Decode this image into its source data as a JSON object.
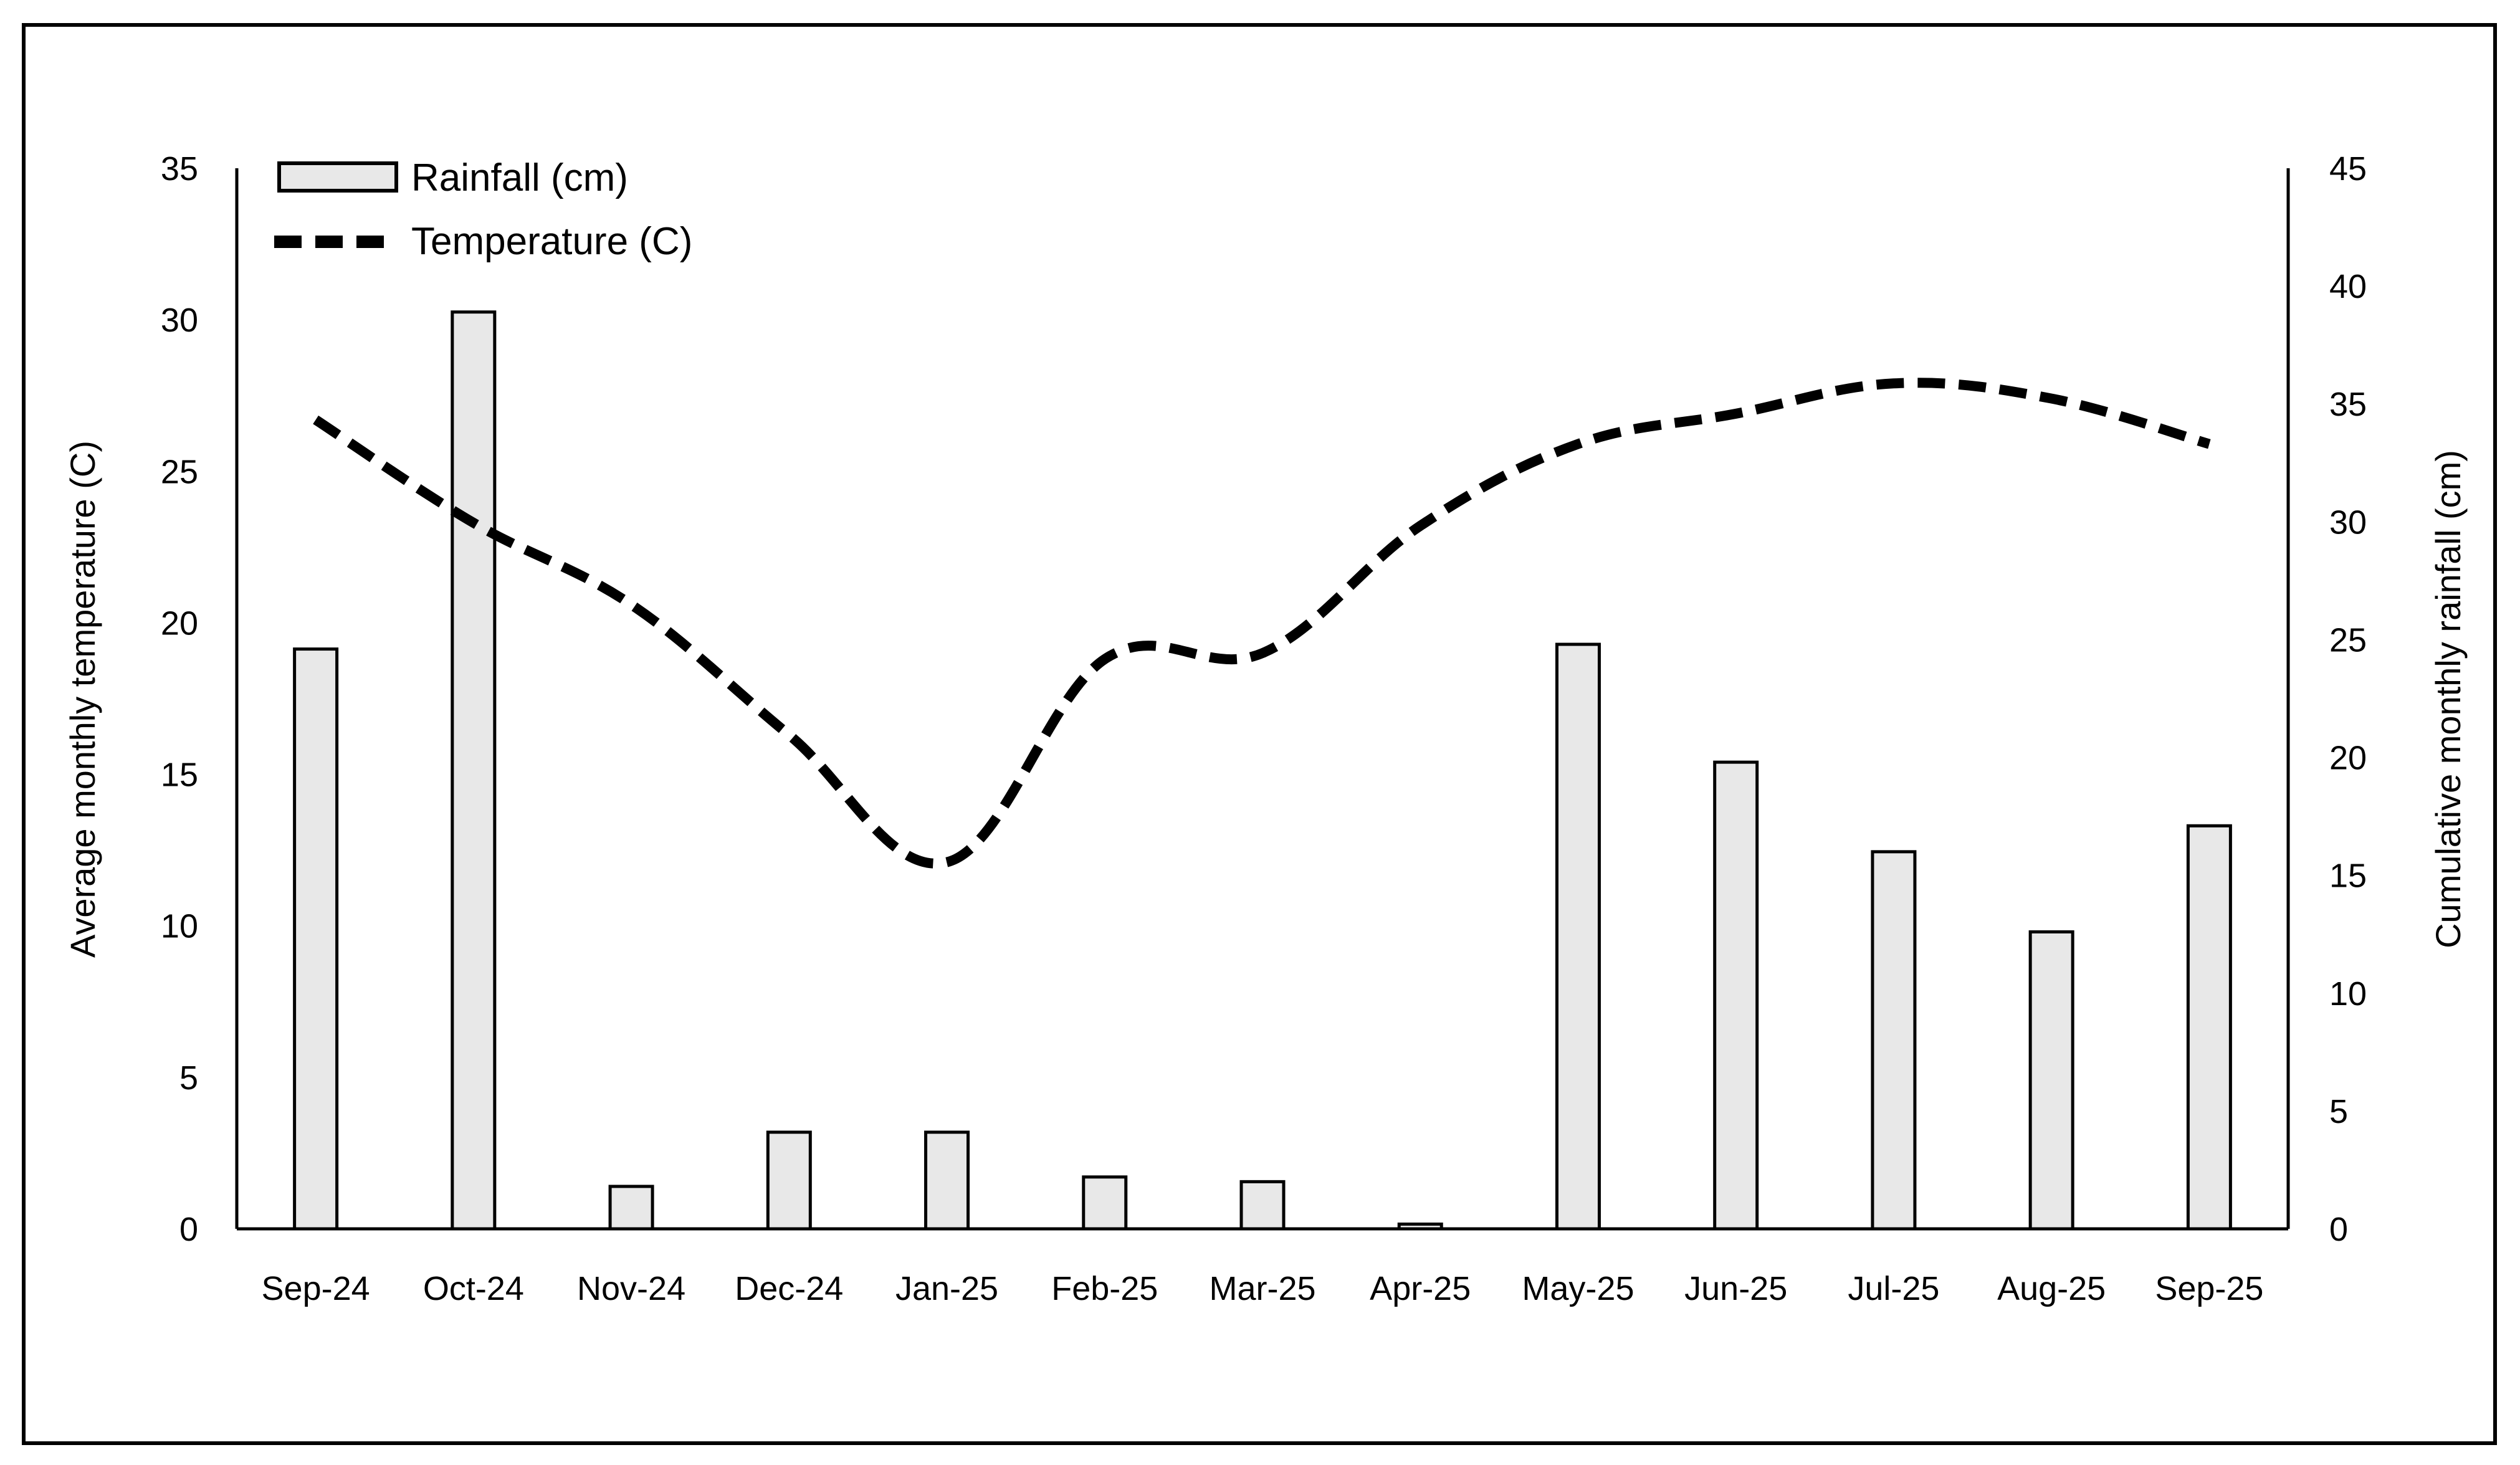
{
  "chart_data": {
    "type": "bar+line",
    "categories": [
      "Sep-24",
      "Oct-24",
      "Nov-24",
      "Dec-24",
      "Jan-25",
      "Feb-25",
      "Mar-25",
      "Apr-25",
      "May-25",
      "Jun-25",
      "Jul-25",
      "Aug-25",
      "Sep-25"
    ],
    "series": [
      {
        "name": "Rainfall (cm)",
        "type": "bar",
        "axis": "right",
        "values": [
          24.6,
          38.9,
          1.8,
          4.1,
          4.1,
          2.2,
          2.0,
          0.2,
          24.8,
          19.8,
          16.0,
          12.6,
          17.1
        ]
      },
      {
        "name": "Temperature (C)",
        "type": "line",
        "axis": "left",
        "values": [
          26.7,
          23.3,
          20.6,
          16.3,
          12.1,
          18.8,
          19.0,
          23.2,
          25.9,
          26.9,
          27.9,
          27.4,
          25.9
        ]
      }
    ],
    "ylabel": "Average monthly temperature (C)",
    "y2label": "Cumulative monthly rainfall (cm)",
    "ylim": [
      0,
      35
    ],
    "y2lim": [
      0,
      45
    ],
    "yticks": [
      "0",
      "5",
      "10",
      "15",
      "20",
      "25",
      "30",
      "35"
    ],
    "y2ticks": [
      "0",
      "5",
      "10",
      "15",
      "20",
      "25",
      "30",
      "35",
      "40",
      "45"
    ],
    "grid": false,
    "legend_position": "top-left",
    "colors": {
      "bar_fill": "#e8e8e8",
      "bar_stroke": "#000000",
      "line": "#000000",
      "frame": "#000000"
    }
  }
}
